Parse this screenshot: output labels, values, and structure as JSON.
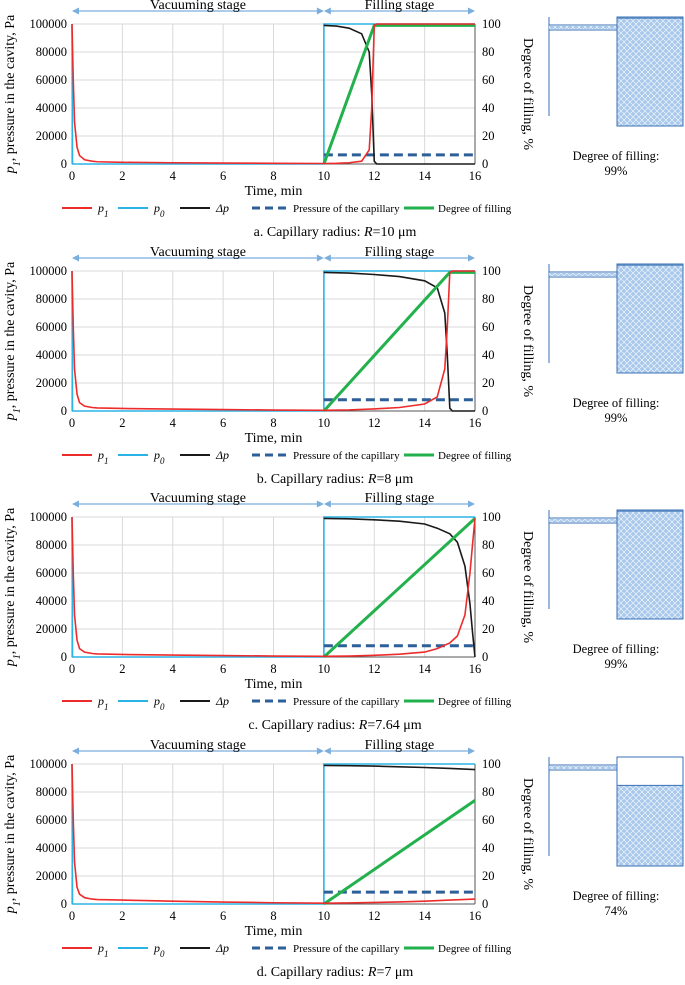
{
  "colors": {
    "p1": "#ee2b2b",
    "p0": "#2bb3e6",
    "dp": "#1a1a1a",
    "capillary": "#2d5f99",
    "filling": "#22b14c",
    "stage_arrow": "#7aaedc",
    "grid": "#d9d9d9",
    "fill_blue": "#a9c8ec",
    "cavity_border": "#3a72b5"
  },
  "shared": {
    "vacuum_label": "Vacuuming stage",
    "filling_label": "Filling stage",
    "xlabel": "Time, min",
    "ylabel_left": "p1, pressure in the cavity, Pa",
    "ylabel_left_sym": "p",
    "ylabel_left_sub": "1",
    "ylabel_left_rest": ", pressure in the cavity, Pa",
    "ylabel_right": "Degree of filling, %",
    "legend": {
      "p1": "p1",
      "p1_sym": "p",
      "p1_sub": "1",
      "p0": "p0",
      "p0_sym": "p",
      "p0_sub": "0",
      "dp": "Δp",
      "capillary": "Pressure of the capillary",
      "filling": "Degree of filling"
    },
    "side_title": "Degree of filling:"
  },
  "chart_data": [
    {
      "type": "line",
      "caption_prefix": "a. Capillary radius: ",
      "caption_var": "R",
      "caption_value": "=10 μm",
      "caption": "a. Capillary radius: R=10 μm",
      "x_ticks": [
        "0",
        "2",
        "4",
        "6",
        "8",
        "10",
        "12",
        "14",
        "16"
      ],
      "y_left_ticks": [
        "0",
        "20000",
        "40000",
        "60000",
        "80000",
        "100000"
      ],
      "y_right_ticks": [
        "0",
        "20",
        "40",
        "60",
        "80",
        "100"
      ],
      "xlim": [
        0,
        16
      ],
      "ylim_left": [
        0,
        100000
      ],
      "ylim_right": [
        0,
        100
      ],
      "fill_end_time": 12.0,
      "final_fill": 99,
      "capillary_pressure": 6500,
      "side_value": "99%",
      "series": [
        {
          "name": "p1",
          "x": [
            0,
            0.05,
            0.1,
            0.2,
            0.3,
            0.5,
            0.8,
            1,
            2,
            4,
            6,
            8,
            10,
            10.5,
            11,
            11.5,
            11.8,
            11.9,
            12.0,
            12.1,
            16
          ],
          "y": [
            100000,
            60000,
            30000,
            12000,
            6000,
            3000,
            2000,
            1600,
            1200,
            900,
            700,
            500,
            350,
            500,
            900,
            2000,
            10000,
            40000,
            99000,
            100000,
            100000
          ]
        },
        {
          "name": "p0",
          "x": [
            0,
            0.02,
            10,
            10,
            16
          ],
          "y": [
            100000,
            0,
            0,
            100000,
            100000
          ]
        },
        {
          "name": "dp",
          "x": [
            10,
            10.5,
            11,
            11.5,
            11.8,
            11.9,
            12.0,
            12.1,
            16
          ],
          "y": [
            99000,
            98500,
            97000,
            93000,
            80000,
            50000,
            2000,
            0,
            0
          ]
        },
        {
          "name": "filling",
          "x": [
            10,
            12,
            16
          ],
          "y": [
            0,
            99,
            99
          ]
        },
        {
          "name": "capillary",
          "x": [
            10,
            16
          ],
          "y": [
            6500,
            6500
          ]
        }
      ]
    },
    {
      "type": "line",
      "caption_prefix": "b. Capillary radius: ",
      "caption_var": "R",
      "caption_value": "=8 μm",
      "caption": "b. Capillary radius: R=8 μm",
      "x_ticks": [
        "0",
        "2",
        "4",
        "6",
        "8",
        "10",
        "12",
        "14",
        "16"
      ],
      "y_left_ticks": [
        "0",
        "20000",
        "40000",
        "60000",
        "80000",
        "100000"
      ],
      "y_right_ticks": [
        "0",
        "20",
        "40",
        "60",
        "80",
        "100"
      ],
      "xlim": [
        0,
        16
      ],
      "ylim_left": [
        0,
        100000
      ],
      "ylim_right": [
        0,
        100
      ],
      "fill_end_time": 15.0,
      "final_fill": 99,
      "capillary_pressure": 8000,
      "side_value": "99%",
      "series": [
        {
          "name": "p1",
          "x": [
            0,
            0.05,
            0.1,
            0.2,
            0.3,
            0.5,
            0.8,
            1,
            2,
            4,
            6,
            8,
            10,
            11,
            12,
            13,
            14,
            14.5,
            14.8,
            14.9,
            15.0,
            15.1,
            16
          ],
          "y": [
            100000,
            60000,
            30000,
            12000,
            6000,
            3500,
            2500,
            2200,
            1800,
            1400,
            1000,
            700,
            500,
            800,
            1500,
            2500,
            5000,
            10000,
            30000,
            60000,
            99000,
            100000,
            100000
          ]
        },
        {
          "name": "p0",
          "x": [
            0,
            0.02,
            10,
            10,
            16
          ],
          "y": [
            100000,
            0,
            0,
            100000,
            100000
          ]
        },
        {
          "name": "dp",
          "x": [
            10,
            11,
            12,
            13,
            14,
            14.5,
            14.8,
            14.9,
            15.0,
            15.1,
            16
          ],
          "y": [
            99000,
            98500,
            97500,
            96000,
            93000,
            88000,
            70000,
            40000,
            2000,
            0,
            0
          ]
        },
        {
          "name": "filling",
          "x": [
            10,
            15,
            16
          ],
          "y": [
            0,
            99,
            99
          ]
        },
        {
          "name": "capillary",
          "x": [
            10,
            16
          ],
          "y": [
            8000,
            8000
          ]
        }
      ]
    },
    {
      "type": "line",
      "caption_prefix": "c. Capillary radius: ",
      "caption_var": "R",
      "caption_value": "=7.64 μm",
      "caption": "c. Capillary radius: R=7.64 μm",
      "x_ticks": [
        "0",
        "2",
        "4",
        "6",
        "8",
        "10",
        "12",
        "14",
        "16"
      ],
      "y_left_ticks": [
        "0",
        "20000",
        "40000",
        "60000",
        "80000",
        "100000"
      ],
      "y_right_ticks": [
        "0",
        "20",
        "40",
        "60",
        "80",
        "100"
      ],
      "xlim": [
        0,
        16
      ],
      "ylim_left": [
        0,
        100000
      ],
      "ylim_right": [
        0,
        100
      ],
      "fill_end_time": 16.0,
      "final_fill": 99,
      "capillary_pressure": 8000,
      "side_value": "99%",
      "series": [
        {
          "name": "p1",
          "x": [
            0,
            0.05,
            0.1,
            0.2,
            0.3,
            0.5,
            0.8,
            1,
            2,
            4,
            6,
            8,
            10,
            11,
            12,
            13,
            14,
            14.5,
            15,
            15.3,
            15.6,
            15.8,
            15.9,
            16.0
          ],
          "y": [
            100000,
            60000,
            30000,
            12000,
            6000,
            3500,
            2500,
            2200,
            1800,
            1400,
            1000,
            700,
            500,
            700,
            1200,
            2000,
            3500,
            6000,
            10000,
            15000,
            30000,
            60000,
            80000,
            99000
          ]
        },
        {
          "name": "p0",
          "x": [
            0,
            0.02,
            10,
            10,
            16
          ],
          "y": [
            100000,
            0,
            0,
            100000,
            100000
          ]
        },
        {
          "name": "dp",
          "x": [
            10,
            11,
            12,
            13,
            14,
            14.5,
            15,
            15.3,
            15.6,
            15.8,
            15.9,
            16.0
          ],
          "y": [
            99000,
            98700,
            98000,
            97000,
            95000,
            92000,
            88000,
            82000,
            65000,
            38000,
            18000,
            0
          ]
        },
        {
          "name": "filling",
          "x": [
            10,
            16
          ],
          "y": [
            0,
            99
          ]
        },
        {
          "name": "capillary",
          "x": [
            10,
            16
          ],
          "y": [
            8000,
            8000
          ]
        }
      ]
    },
    {
      "type": "line",
      "caption_prefix": "d. Capillary radius: ",
      "caption_var": "R",
      "caption_value": "=7 μm",
      "caption": "d. Capillary radius: R=7 μm",
      "x_ticks": [
        "0",
        "2",
        "4",
        "6",
        "8",
        "10",
        "12",
        "14",
        "16"
      ],
      "y_left_ticks": [
        "0",
        "20000",
        "40000",
        "60000",
        "80000",
        "100000"
      ],
      "y_right_ticks": [
        "0",
        "20",
        "40",
        "60",
        "80",
        "100"
      ],
      "xlim": [
        0,
        16
      ],
      "ylim_left": [
        0,
        100000
      ],
      "ylim_right": [
        0,
        100
      ],
      "fill_end_time": 16.0,
      "final_fill": 74,
      "capillary_pressure": 8500,
      "side_value": "74%",
      "series": [
        {
          "name": "p1",
          "x": [
            0,
            0.05,
            0.1,
            0.2,
            0.3,
            0.5,
            0.8,
            1,
            2,
            4,
            6,
            8,
            10,
            11,
            12,
            13,
            14,
            15,
            16
          ],
          "y": [
            100000,
            60000,
            30000,
            12000,
            7000,
            4500,
            3500,
            3200,
            2800,
            2000,
            1400,
            900,
            600,
            800,
            1100,
            1500,
            2000,
            2800,
            3500
          ]
        },
        {
          "name": "p0",
          "x": [
            0,
            0.02,
            10,
            10,
            16
          ],
          "y": [
            100000,
            0,
            0,
            100000,
            100000
          ]
        },
        {
          "name": "dp",
          "x": [
            10,
            11,
            12,
            13,
            14,
            15,
            16
          ],
          "y": [
            99000,
            98800,
            98500,
            98000,
            97500,
            96800,
            96000
          ]
        },
        {
          "name": "filling",
          "x": [
            10,
            16
          ],
          "y": [
            0,
            74
          ]
        },
        {
          "name": "capillary",
          "x": [
            10,
            16
          ],
          "y": [
            8500,
            8500
          ]
        }
      ]
    }
  ]
}
